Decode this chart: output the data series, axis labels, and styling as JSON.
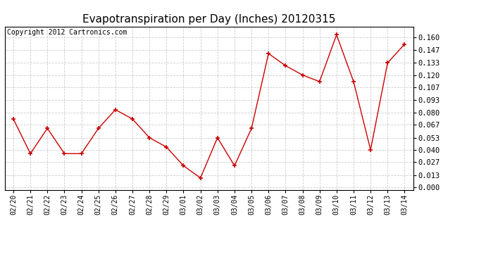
{
  "title": "Evapotranspiration per Day (Inches) 20120315",
  "copyright": "Copyright 2012 Cartronics.com",
  "dates": [
    "02/20",
    "02/21",
    "02/22",
    "02/23",
    "02/24",
    "02/25",
    "02/26",
    "02/27",
    "02/28",
    "02/29",
    "03/01",
    "03/02",
    "03/03",
    "03/04",
    "03/05",
    "03/06",
    "03/07",
    "03/08",
    "03/09",
    "03/10",
    "03/11",
    "03/12",
    "03/13",
    "03/14"
  ],
  "values": [
    0.073,
    0.036,
    0.063,
    0.036,
    0.036,
    0.063,
    0.083,
    0.073,
    0.053,
    0.043,
    0.023,
    0.01,
    0.053,
    0.023,
    0.063,
    0.143,
    0.13,
    0.12,
    0.113,
    0.163,
    0.113,
    0.04,
    0.133,
    0.153
  ],
  "yticks": [
    0.0,
    0.013,
    0.027,
    0.04,
    0.053,
    0.067,
    0.08,
    0.093,
    0.107,
    0.12,
    0.133,
    0.147,
    0.16
  ],
  "ylim": [
    -0.003,
    0.172
  ],
  "line_color": "#cc0000",
  "marker": "+",
  "marker_size": 5,
  "marker_linewidth": 1.2,
  "bg_color": "#ffffff",
  "grid_color": "#cccccc",
  "title_fontsize": 11,
  "copyright_fontsize": 7,
  "tick_fontsize": 7,
  "ytick_fontsize": 7.5
}
